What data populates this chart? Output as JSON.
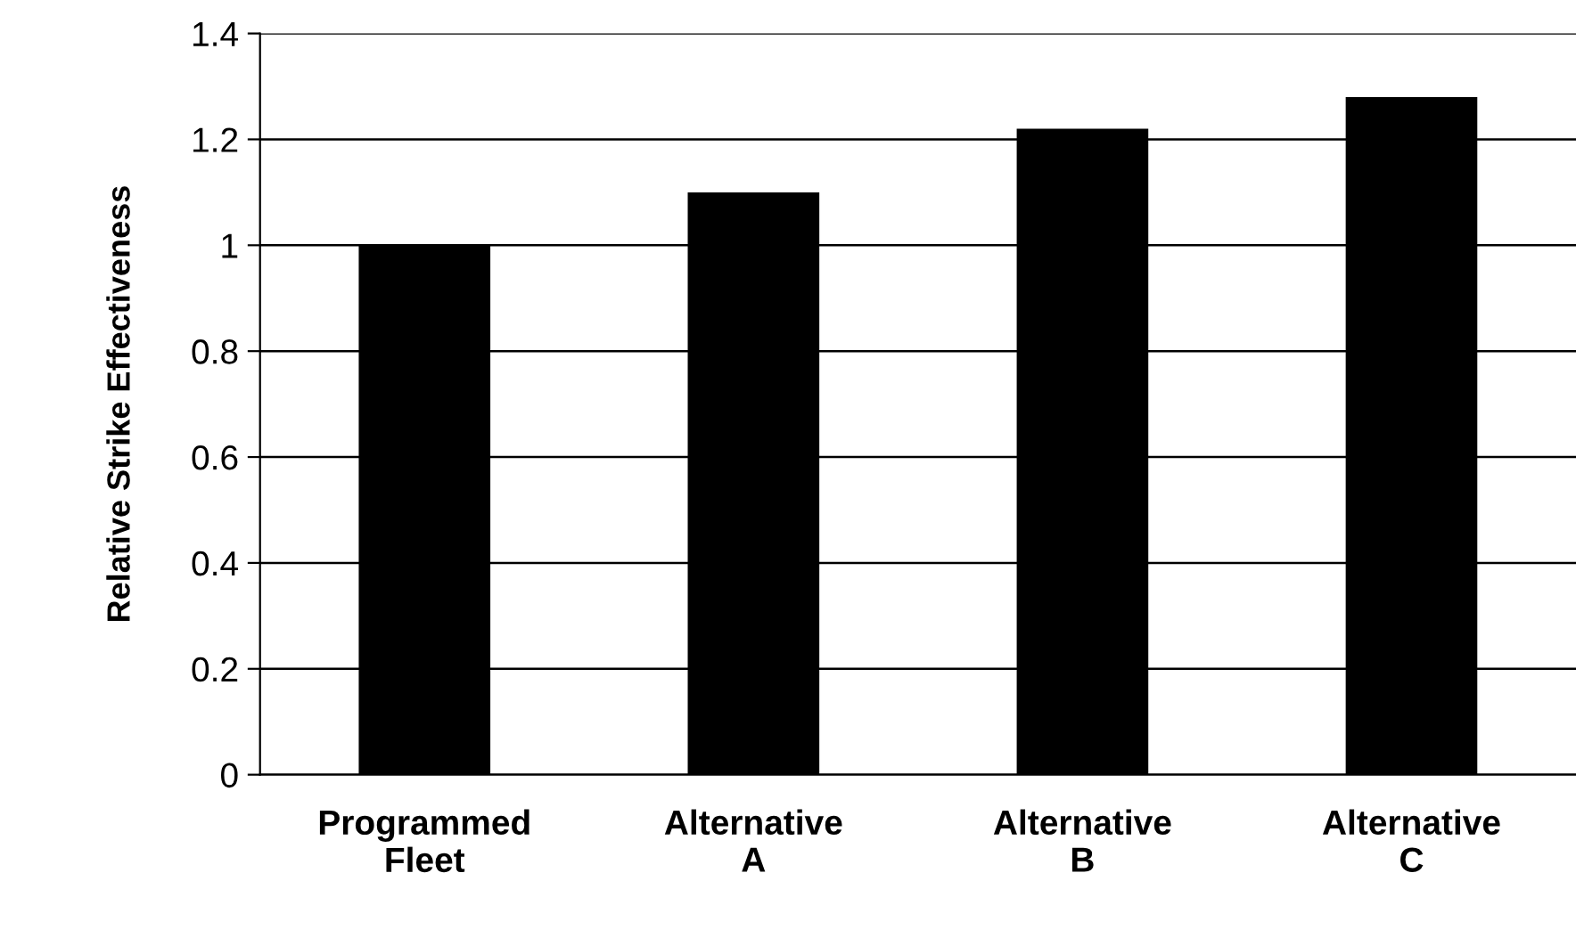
{
  "chart_data": {
    "type": "bar",
    "ylabel": "Relative Strike Effectiveness",
    "categories": [
      "Programmed\nFleet",
      "Alternative\nA",
      "Alternative\nB",
      "Alternative\nC"
    ],
    "values": [
      1.0,
      1.1,
      1.22,
      1.28
    ],
    "color": "#000000",
    "ylim": [
      0,
      1.4
    ],
    "yticks": [
      0,
      {
        "value": 0.2,
        "label": "0.2"
      },
      {
        "value": 0.4,
        "label": "0.4"
      },
      {
        "value": 0.6,
        "label": "0.6"
      },
      {
        "value": 0.8,
        "label": "0.8"
      },
      1,
      {
        "value": 1.2,
        "label": "1.2"
      },
      {
        "value": 1.4,
        "label": "1.4"
      }
    ],
    "grid": "y"
  }
}
